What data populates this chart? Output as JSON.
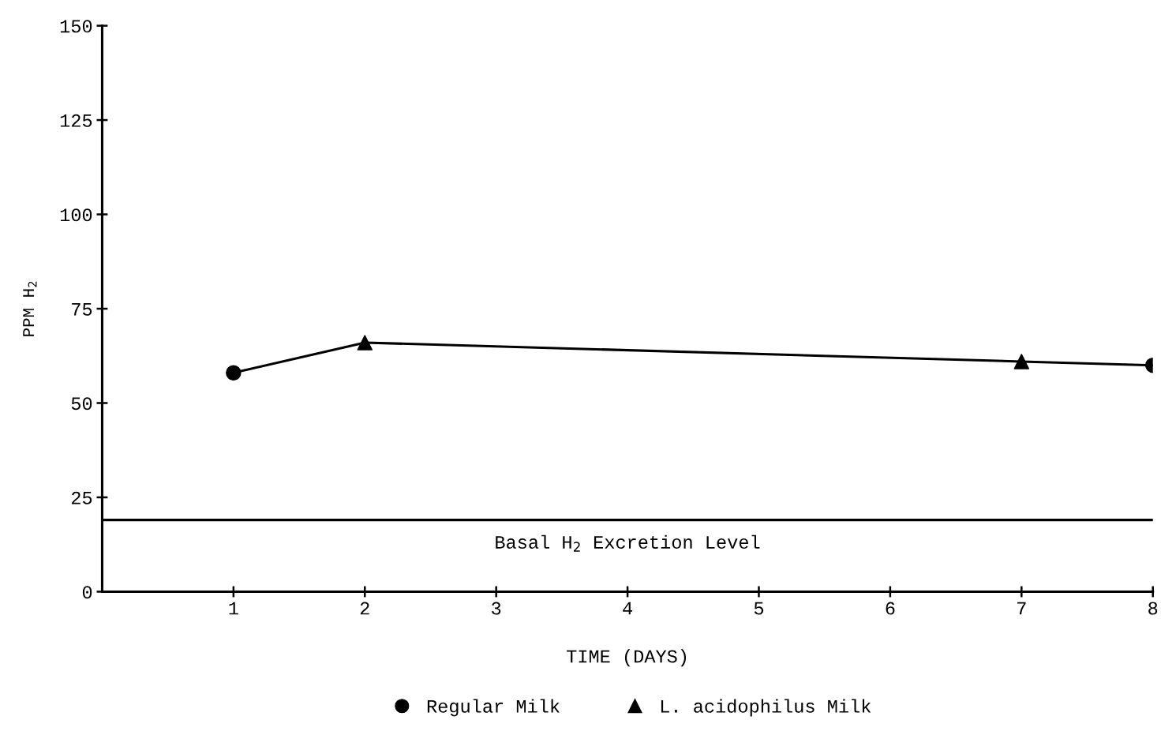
{
  "chart_data": {
    "type": "line",
    "xlabel": "TIME (DAYS)",
    "ylabel": "PPM H$_{2}$",
    "xlim": [
      0,
      8
    ],
    "xticks": [
      1,
      2,
      3,
      4,
      5,
      6,
      7,
      8
    ],
    "ylim": [
      0,
      150
    ],
    "yticks": [
      0,
      25,
      50,
      75,
      100,
      125,
      150
    ],
    "grid": false,
    "legend": "bottom",
    "series": [
      {
        "x": [
          1,
          2,
          7,
          8
        ],
        "values": [
          58,
          66,
          61,
          60
        ],
        "color": "#000000",
        "marker": "none",
        "line_style": "solid"
      },
      {
        "type": "scatter",
        "name": "Regular Milk",
        "x": [
          1,
          8
        ],
        "values": [
          58,
          60
        ],
        "color": "#000000",
        "marker": "circle"
      },
      {
        "type": "scatter",
        "name": "L. acidophilus Milk",
        "x": [
          2,
          7
        ],
        "values": [
          66,
          61
        ],
        "color": "#000000",
        "marker": "triangle"
      }
    ],
    "ref_lines": [
      {
        "axis": "y",
        "value": 19,
        "label": "Basal H$_{2}$ Excretion Level",
        "color": "#000000",
        "line_style": "solid"
      }
    ]
  }
}
